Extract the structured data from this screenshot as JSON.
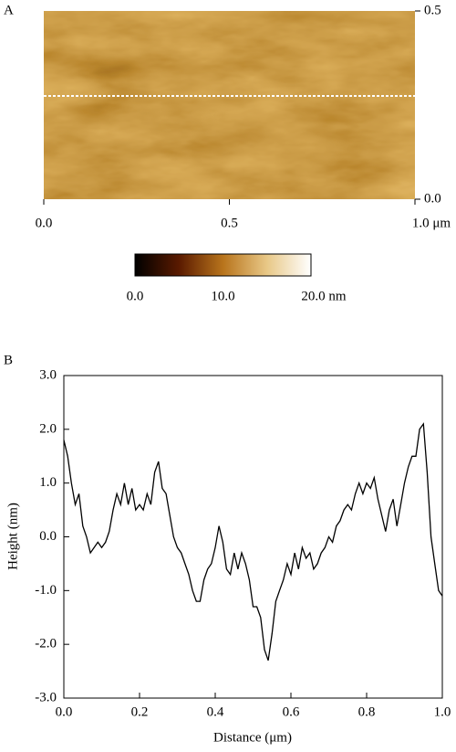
{
  "chart_data": [
    {
      "type": "image",
      "panel_label": "A",
      "xlim": [
        0,
        1
      ],
      "xticks": [
        {
          "value": 0,
          "label": "0.0"
        },
        0.5,
        {
          "value": 1,
          "label": "1.0 μm"
        }
      ],
      "ylim": [
        0,
        0.5
      ],
      "yticks": [
        {
          "value": 0,
          "label": "0.0"
        },
        0.5
      ],
      "colorbar": {
        "lim": [
          0,
          20
        ],
        "ticks": [
          {
            "value": 0,
            "label": "0.0"
          },
          {
            "value": 10,
            "label": "10.0"
          },
          {
            "value": 20,
            "label": "20.0 nm"
          }
        ],
        "colors": [
          "#000000",
          "#5a1a00",
          "#b8741c",
          "#e8c887",
          "#ffffff"
        ]
      }
    },
    {
      "type": "line",
      "panel_label": "B",
      "x_label": "Distance (μm)",
      "y_label": "Height (nm)",
      "color": "#000000",
      "xlim": [
        0,
        1
      ],
      "xticks": [
        {
          "value": 0,
          "label": "0.0"
        },
        0.2,
        0.4,
        0.6,
        0.8,
        {
          "value": 1,
          "label": "1.0"
        }
      ],
      "ylim": [
        -3,
        3
      ],
      "yticks": [
        {
          "value": -3,
          "label": "-3.0"
        },
        {
          "value": -2,
          "label": "-2.0"
        },
        {
          "value": -1,
          "label": "-1.0"
        },
        {
          "value": 0,
          "label": "0.0"
        },
        {
          "value": 1,
          "label": "1.0"
        },
        {
          "value": 2,
          "label": "2.0"
        },
        {
          "value": 3,
          "label": "3.0"
        }
      ],
      "x": [
        0,
        0.01,
        0.02,
        0.03,
        0.04,
        0.05,
        0.06,
        0.07,
        0.08,
        0.09,
        0.1,
        0.11,
        0.12,
        0.13,
        0.14,
        0.15,
        0.16,
        0.17,
        0.18,
        0.19,
        0.2,
        0.21,
        0.22,
        0.23,
        0.24,
        0.25,
        0.26,
        0.27,
        0.28,
        0.29,
        0.3,
        0.31,
        0.32,
        0.33,
        0.34,
        0.35,
        0.36,
        0.37,
        0.38,
        0.39,
        0.4,
        0.41,
        0.42,
        0.43,
        0.44,
        0.45,
        0.46,
        0.47,
        0.48,
        0.49,
        0.5,
        0.51,
        0.52,
        0.53,
        0.54,
        0.55,
        0.56,
        0.57,
        0.58,
        0.59,
        0.6,
        0.61,
        0.62,
        0.63,
        0.64,
        0.65,
        0.66,
        0.67,
        0.68,
        0.69,
        0.7,
        0.71,
        0.72,
        0.73,
        0.74,
        0.75,
        0.76,
        0.77,
        0.78,
        0.79,
        0.8,
        0.81,
        0.82,
        0.83,
        0.84,
        0.85,
        0.86,
        0.87,
        0.88,
        0.89,
        0.9,
        0.91,
        0.92,
        0.93,
        0.94,
        0.95,
        0.96,
        0.97,
        0.98,
        0.99,
        1
      ],
      "values": [
        1.8,
        1.5,
        1.0,
        0.6,
        0.8,
        0.2,
        0.0,
        -0.3,
        -0.2,
        -0.1,
        -0.2,
        -0.1,
        0.1,
        0.5,
        0.8,
        0.6,
        1.0,
        0.6,
        0.9,
        0.5,
        0.6,
        0.5,
        0.8,
        0.6,
        1.2,
        1.4,
        0.9,
        0.8,
        0.4,
        0.0,
        -0.2,
        -0.3,
        -0.5,
        -0.7,
        -1.0,
        -1.2,
        -1.2,
        -0.8,
        -0.6,
        -0.5,
        -0.2,
        0.2,
        -0.1,
        -0.6,
        -0.7,
        -0.3,
        -0.6,
        -0.3,
        -0.5,
        -0.8,
        -1.3,
        -1.3,
        -1.5,
        -2.1,
        -2.3,
        -1.8,
        -1.2,
        -1.0,
        -0.8,
        -0.5,
        -0.7,
        -0.3,
        -0.6,
        -0.2,
        -0.4,
        -0.3,
        -0.6,
        -0.5,
        -0.3,
        -0.2,
        0.0,
        -0.1,
        0.2,
        0.3,
        0.5,
        0.6,
        0.5,
        0.8,
        1.0,
        0.8,
        1.0,
        0.9,
        1.1,
        0.7,
        0.4,
        0.1,
        0.5,
        0.7,
        0.2,
        0.6,
        1.0,
        1.3,
        1.5,
        1.5,
        2.0,
        2.1,
        1.2,
        0.0,
        -0.5,
        -1.0,
        -1.1
      ]
    }
  ]
}
